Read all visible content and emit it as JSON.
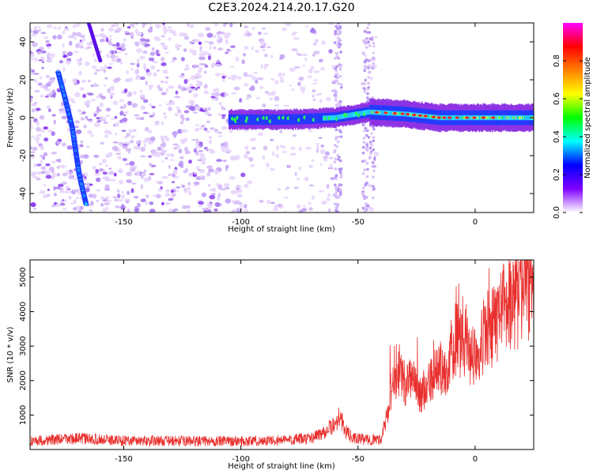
{
  "title": "C2E3.2024.214.20.17.G20",
  "chart_data": [
    {
      "type": "heatmap",
      "xlabel": "Height of straight line (km)",
      "ylabel": "Frequency (Hz)",
      "xlim": [
        -190,
        25
      ],
      "ylim": [
        -50,
        50
      ],
      "x_ticks": [
        -150,
        -100,
        -50,
        0
      ],
      "y_ticks": [
        40,
        20,
        0,
        -20,
        -40
      ],
      "colorbar": {
        "label": "Normalized spectral amplitude",
        "range": [
          0,
          1
        ],
        "ticks": [
          0.0,
          0.2,
          0.4,
          0.6,
          0.8
        ],
        "colormap": [
          "#ffffff",
          "#8000ff",
          "#0000ff",
          "#00ffff",
          "#00ff00",
          "#ffff00",
          "#ff8000",
          "#ff0000",
          "#ff00ff"
        ]
      },
      "features": [
        {
          "description": "main Doppler track",
          "points": [
            [
              -105,
              -1
            ],
            [
              -80,
              -1
            ],
            [
              -60,
              0
            ],
            [
              -45,
              3
            ],
            [
              -30,
              2
            ],
            [
              -15,
              0
            ],
            [
              0,
              0
            ],
            [
              25,
              0
            ]
          ]
        },
        {
          "description": "steep spur track",
          "points": [
            [
              -178,
              24
            ],
            [
              -175,
              10
            ],
            [
              -172,
              -5
            ],
            [
              -169,
              -30
            ],
            [
              -166,
              -46
            ]
          ]
        }
      ]
    },
    {
      "type": "line",
      "xlabel": "Height of straight line (km)",
      "ylabel": "SNR (10 * v/v)",
      "xlim": [
        -190,
        25
      ],
      "ylim": [
        0,
        5500
      ],
      "x_ticks": [
        -150,
        -100,
        -50,
        0
      ],
      "y_ticks": [
        1000,
        2000,
        3000,
        4000,
        5000
      ],
      "color": "#e8302e",
      "series": [
        {
          "x": [
            -190,
            -170,
            -150,
            -130,
            -110,
            -90,
            -80,
            -70,
            -65,
            -60,
            -58,
            -55,
            -52,
            -48,
            -44,
            -40,
            -38,
            -35,
            -32,
            -30,
            -28,
            -25,
            -22,
            -20,
            -18,
            -15,
            -12,
            -10,
            -8,
            -6,
            -4,
            -2,
            0,
            2,
            5,
            8,
            10,
            12,
            15,
            18,
            20,
            22,
            25
          ],
          "y": [
            250,
            320,
            260,
            250,
            240,
            250,
            280,
            320,
            500,
            700,
            1000,
            500,
            320,
            300,
            280,
            300,
            900,
            1800,
            2400,
            1900,
            2100,
            1700,
            1600,
            1900,
            2000,
            2400,
            2300,
            2900,
            3300,
            3000,
            3200,
            2700,
            2800,
            3100,
            3400,
            3600,
            3800,
            4000,
            4200,
            4400,
            4600,
            4800,
            5000
          ]
        }
      ]
    }
  ]
}
